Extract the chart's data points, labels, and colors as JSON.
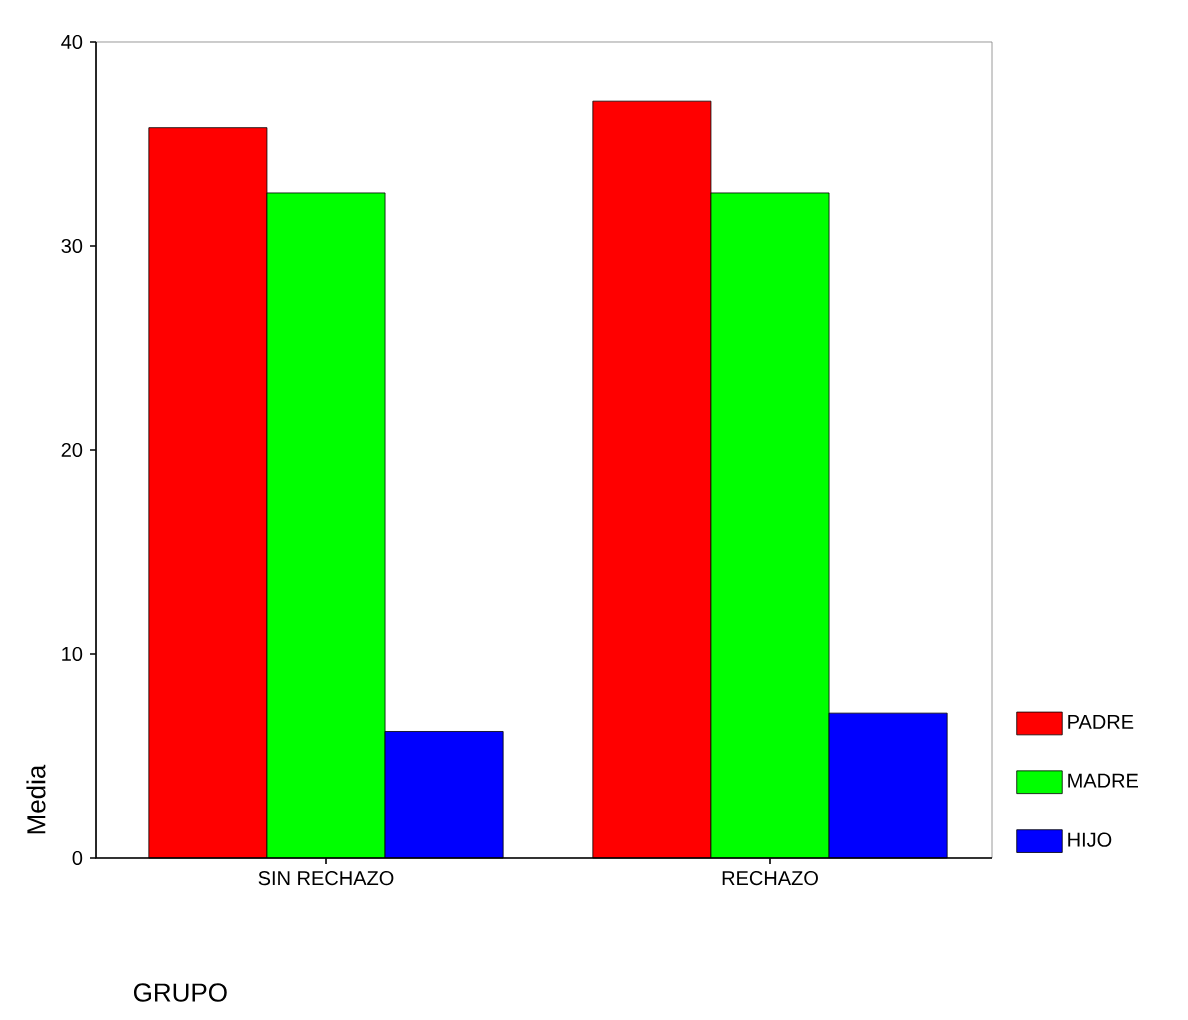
{
  "chart_data": {
    "type": "bar",
    "xlabel": "GRUPO",
    "ylabel": "Media",
    "categories": [
      "SIN RECHAZO",
      "RECHAZO"
    ],
    "series": [
      {
        "name": "PADRE",
        "color": "#ff0000",
        "values": [
          35.8,
          37.1
        ]
      },
      {
        "name": "MADRE",
        "color": "#00ff00",
        "values": [
          32.6,
          32.6
        ]
      },
      {
        "name": "HIJO",
        "color": "#0000ff",
        "values": [
          6.2,
          7.1
        ]
      }
    ],
    "ylim": [
      0,
      40
    ],
    "yticks": [
      0,
      10,
      20,
      30,
      40
    ],
    "legend": "bottom right"
  }
}
